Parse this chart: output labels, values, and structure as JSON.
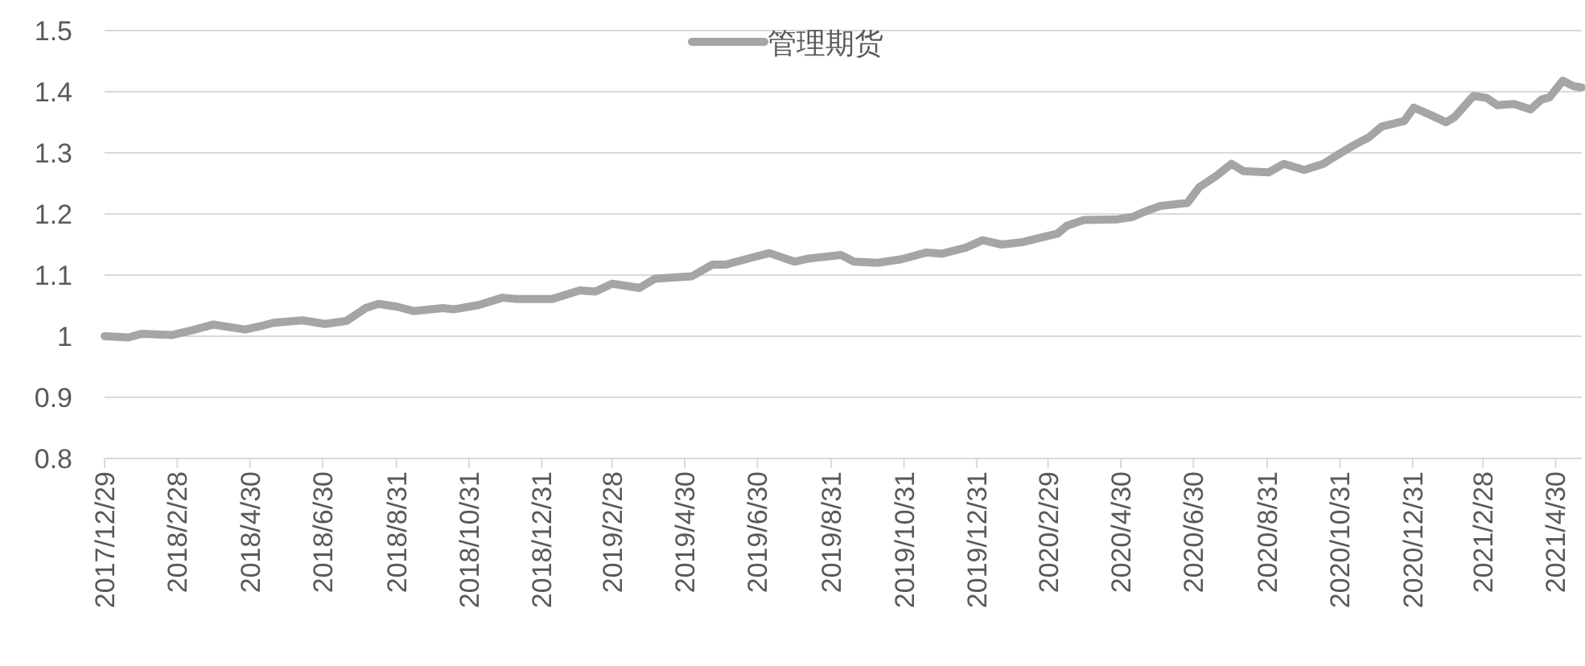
{
  "chart_data": {
    "type": "line",
    "legend": "top",
    "grid": "y",
    "xlim": [
      "2017-12-29",
      "2021-05-22"
    ],
    "ylim": [
      0.8,
      1.5
    ],
    "yticks": [
      0.8,
      0.9,
      1,
      1.1,
      1.2,
      1.3,
      1.4,
      1.5
    ],
    "xticks": [
      {
        "value": "2017-12-29",
        "label": "2017/12/29"
      },
      {
        "value": "2018-02-28",
        "label": "2018/2/28"
      },
      {
        "value": "2018-04-30",
        "label": "2018/4/30"
      },
      {
        "value": "2018-06-30",
        "label": "2018/6/30"
      },
      {
        "value": "2018-08-31",
        "label": "2018/8/31"
      },
      {
        "value": "2018-10-31",
        "label": "2018/10/31"
      },
      {
        "value": "2018-12-31",
        "label": "2018/12/31"
      },
      {
        "value": "2019-02-28",
        "label": "2019/2/28"
      },
      {
        "value": "2019-04-30",
        "label": "2019/4/30"
      },
      {
        "value": "2019-06-30",
        "label": "2019/6/30"
      },
      {
        "value": "2019-08-31",
        "label": "2019/8/31"
      },
      {
        "value": "2019-10-31",
        "label": "2019/10/31"
      },
      {
        "value": "2019-12-31",
        "label": "2019/12/31"
      },
      {
        "value": "2020-02-29",
        "label": "2020/2/29"
      },
      {
        "value": "2020-04-30",
        "label": "2020/4/30"
      },
      {
        "value": "2020-06-30",
        "label": "2020/6/30"
      },
      {
        "value": "2020-08-31",
        "label": "2020/8/31"
      },
      {
        "value": "2020-10-31",
        "label": "2020/10/31"
      },
      {
        "value": "2020-12-31",
        "label": "2020/12/31"
      },
      {
        "value": "2021-02-28",
        "label": "2021/2/28"
      },
      {
        "value": "2021-04-30",
        "label": "2021/4/30"
      }
    ],
    "x": [
      "2017-12-29",
      "2018-01-18",
      "2018-01-29",
      "2018-02-24",
      "2018-03-13",
      "2018-03-30",
      "2018-04-26",
      "2018-05-10",
      "2018-05-20",
      "2018-06-13",
      "2018-07-02",
      "2018-07-20",
      "2018-08-05",
      "2018-08-16",
      "2018-09-01",
      "2018-09-15",
      "2018-10-09",
      "2018-10-18",
      "2018-11-08",
      "2018-11-28",
      "2018-12-09",
      "2019-01-02",
      "2019-01-09",
      "2019-02-01",
      "2019-02-14",
      "2019-02-28",
      "2019-03-23",
      "2019-04-05",
      "2019-05-06",
      "2019-05-23",
      "2019-06-03",
      "2019-06-26",
      "2019-07-10",
      "2019-07-31",
      "2019-08-12",
      "2019-09-08",
      "2019-09-19",
      "2019-10-09",
      "2019-10-29",
      "2019-11-19",
      "2019-12-02",
      "2019-12-22",
      "2020-01-05",
      "2020-01-21",
      "2020-02-08",
      "2020-02-14",
      "2020-03-08",
      "2020-03-16",
      "2020-03-30",
      "2020-04-26",
      "2020-05-10",
      "2020-05-19",
      "2020-06-02",
      "2020-06-25",
      "2020-07-05",
      "2020-07-19",
      "2020-08-01",
      "2020-08-11",
      "2020-09-01",
      "2020-09-14",
      "2020-10-01",
      "2020-10-17",
      "2020-10-31",
      "2020-11-13",
      "2020-11-24",
      "2020-12-05",
      "2020-12-24",
      "2021-01-01",
      "2021-01-15",
      "2021-01-28",
      "2021-02-04",
      "2021-02-20",
      "2021-03-03",
      "2021-03-12",
      "2021-03-26",
      "2021-04-09",
      "2021-04-18",
      "2021-04-25",
      "2021-05-06",
      "2021-05-15",
      "2021-05-22"
    ],
    "series": [
      {
        "name": "管理期货",
        "color": "#a5a5a5",
        "values": [
          1.0,
          0.998,
          1.004,
          1.002,
          1.01,
          1.019,
          1.011,
          1.017,
          1.022,
          1.026,
          1.02,
          1.025,
          1.046,
          1.053,
          1.048,
          1.041,
          1.046,
          1.044,
          1.051,
          1.063,
          1.061,
          1.061,
          1.061,
          1.075,
          1.073,
          1.086,
          1.079,
          1.094,
          1.098,
          1.117,
          1.117,
          1.129,
          1.136,
          1.122,
          1.127,
          1.133,
          1.122,
          1.12,
          1.126,
          1.137,
          1.135,
          1.145,
          1.157,
          1.15,
          1.154,
          1.157,
          1.168,
          1.181,
          1.19,
          1.191,
          1.195,
          1.203,
          1.213,
          1.218,
          1.244,
          1.262,
          1.282,
          1.27,
          1.268,
          1.282,
          1.272,
          1.282,
          1.299,
          1.314,
          1.325,
          1.343,
          1.352,
          1.374,
          1.362,
          1.35,
          1.358,
          1.393,
          1.39,
          1.378,
          1.38,
          1.371,
          1.387,
          1.391,
          1.418,
          1.409,
          1.407
        ]
      }
    ]
  }
}
